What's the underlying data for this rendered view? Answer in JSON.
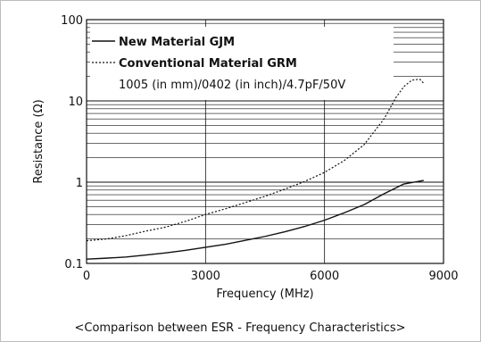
{
  "chart_data": {
    "type": "line",
    "title": "",
    "xlabel": "Frequency (MHz)",
    "ylabel": "Resistance (Ω)",
    "xlim": [
      0,
      9000
    ],
    "ylim": [
      0.1,
      100
    ],
    "yscale": "log",
    "grid": true,
    "x_ticks": [
      "0",
      "3000",
      "6000",
      "9000"
    ],
    "y_ticks": [
      "0.1",
      "1",
      "10",
      "100"
    ],
    "legend_position": "top-right",
    "legend_note": "1005 (in mm)/0402 (in inch)/4.7pF/50V",
    "caption": "<Comparison between ESR - Frequency Characteristics>",
    "series": [
      {
        "name": "New Material GJM",
        "style": "solid",
        "x": [
          0,
          500,
          1000,
          1500,
          2000,
          2500,
          3000,
          3500,
          4000,
          4500,
          5000,
          5500,
          6000,
          6500,
          7000,
          7500,
          8000,
          8500
        ],
        "y": [
          0.113,
          0.116,
          0.12,
          0.127,
          0.135,
          0.145,
          0.158,
          0.172,
          0.192,
          0.215,
          0.245,
          0.285,
          0.34,
          0.42,
          0.53,
          0.72,
          0.95,
          1.05
        ]
      },
      {
        "name": "Conventional Material GRM",
        "style": "dotted",
        "x": [
          0,
          500,
          1000,
          1500,
          2000,
          2500,
          3000,
          3500,
          4000,
          4500,
          5000,
          5500,
          6000,
          6500,
          7000,
          7500,
          7800,
          8000,
          8200,
          8400,
          8500
        ],
        "y": [
          0.19,
          0.2,
          0.22,
          0.25,
          0.28,
          0.33,
          0.4,
          0.47,
          0.56,
          0.67,
          0.82,
          1.02,
          1.32,
          1.85,
          2.9,
          6.0,
          11.0,
          15.0,
          18.0,
          18.5,
          16.5
        ]
      }
    ]
  }
}
